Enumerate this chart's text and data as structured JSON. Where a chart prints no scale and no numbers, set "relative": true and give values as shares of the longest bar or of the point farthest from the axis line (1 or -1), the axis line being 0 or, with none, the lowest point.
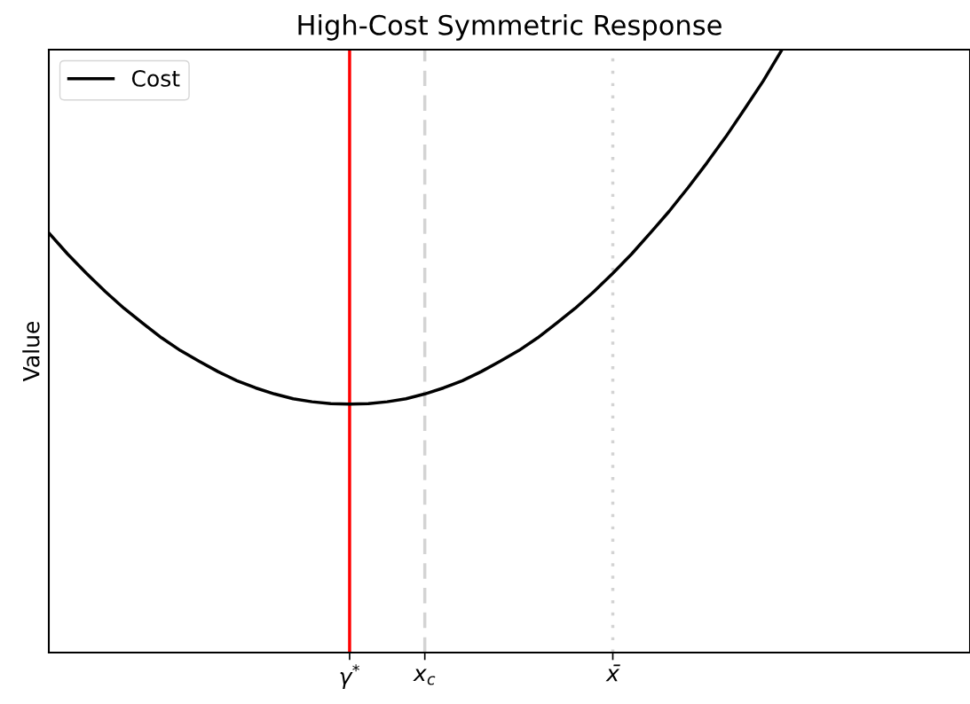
{
  "chart_data": {
    "type": "line",
    "title": "High-Cost Symmetric Response",
    "ylabel": "Value",
    "relative": true,
    "legend": "top left",
    "grid": false,
    "categories": [
      null,
      null,
      null,
      null,
      null,
      null,
      null,
      null,
      null,
      null,
      null,
      null,
      null,
      null,
      null,
      null,
      "γ$^{*}$",
      null,
      null,
      null,
      "x$_{c}$",
      null,
      null,
      null,
      null,
      null,
      null,
      null,
      null,
      null,
      "x̄",
      null,
      null,
      null,
      null,
      null,
      null,
      null,
      null,
      null,
      null,
      null,
      null,
      null,
      null,
      null,
      null,
      null,
      null,
      null
    ],
    "series": [
      {
        "name": "Cost",
        "color": "#000000",
        "line_style": "solid",
        "values": [
          0.696,
          0.661,
          0.629,
          0.599,
          0.571,
          0.546,
          0.522,
          0.501,
          0.483,
          0.466,
          0.451,
          0.439,
          0.429,
          0.421,
          0.416,
          0.413,
          0.412,
          0.413,
          0.416,
          0.421,
          0.429,
          0.439,
          0.451,
          0.466,
          0.483,
          0.501,
          0.522,
          0.546,
          0.571,
          0.599,
          0.629,
          0.661,
          0.696,
          0.732,
          0.771,
          0.812,
          0.855,
          0.901,
          0.948,
          1.0,
          null,
          null,
          null,
          null,
          null,
          null,
          null,
          null,
          null,
          null
        ]
      }
    ],
    "ref_lines": [
      {
        "axis": "x",
        "value": "γ$^{*}$",
        "color": "#ff0000",
        "line_style": "solid"
      },
      {
        "axis": "x",
        "value": "x$_{c}$",
        "color": "#d3d3d3",
        "line_style": "dashed"
      },
      {
        "axis": "x",
        "value": "x̄",
        "color": "#d3d3d3",
        "line_style": "dotted"
      }
    ]
  }
}
